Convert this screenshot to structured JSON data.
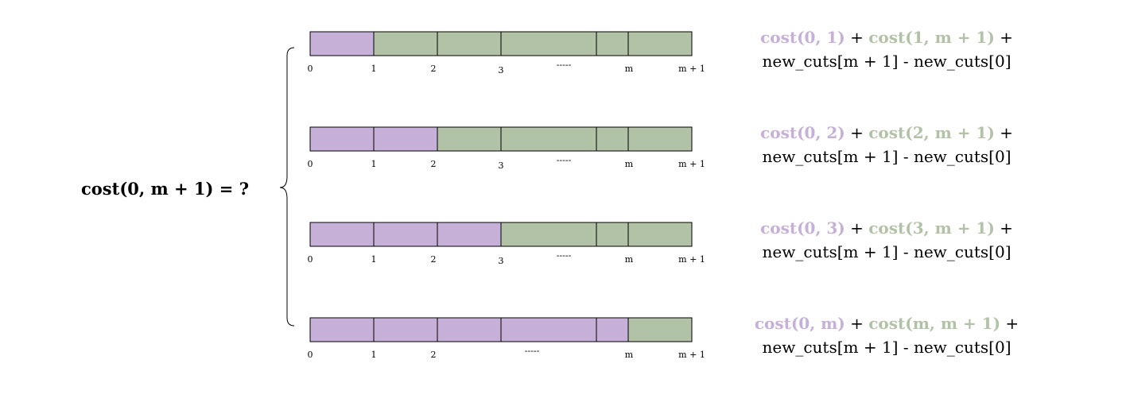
{
  "colors": {
    "left_segment": "#c6b0d8",
    "right_segment": "#b2c2a7",
    "stroke": "#000000",
    "left_text": "#c6b0d8",
    "right_text": "#b2c2a7"
  },
  "question": "cost(0, m + 1) = ?",
  "rows": [
    {
      "purple_cells": 1,
      "ticks": [
        "0",
        "1",
        "2",
        "3",
        "-----",
        "m",
        "m + 1"
      ],
      "formula": {
        "left": "cost(0, 1)",
        "plus1": " + ",
        "right": "cost(1, m + 1)",
        "plus2": " +",
        "line2": "new_cuts[m + 1] - new_cuts[0]"
      }
    },
    {
      "purple_cells": 2,
      "ticks": [
        "0",
        "1",
        "2",
        "3",
        "-----",
        "m",
        "m + 1"
      ],
      "formula": {
        "left": "cost(0, 2)",
        "plus1": " + ",
        "right": "cost(2, m + 1)",
        "plus2": " +",
        "line2": "new_cuts[m + 1] - new_cuts[0]"
      }
    },
    {
      "purple_cells": 3,
      "ticks": [
        "0",
        "1",
        "2",
        "3",
        "-----",
        "m",
        "m + 1"
      ],
      "formula": {
        "left": "cost(0, 3)",
        "plus1": " + ",
        "right": "cost(3, m + 1)",
        "plus2": " +",
        "line2": "new_cuts[m + 1] - new_cuts[0]"
      }
    },
    {
      "purple_cells": 5,
      "ticks": [
        "0",
        "1",
        "2",
        "-----",
        "m",
        "m + 1"
      ],
      "formula": {
        "left": "cost(0, m)",
        "plus1": " + ",
        "right": "cost(m, m + 1)",
        "plus2": " +",
        "line2": "new_cuts[m + 1] - new_cuts[0]"
      }
    }
  ]
}
